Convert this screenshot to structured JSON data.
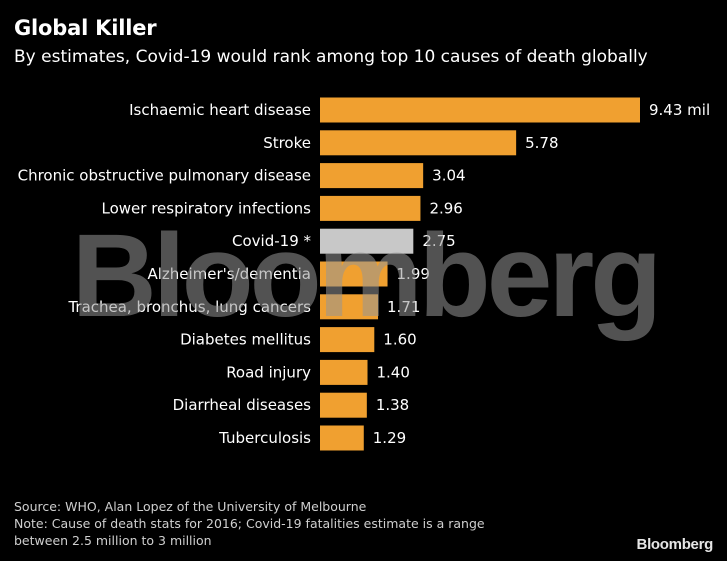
{
  "header": {
    "title": "Global Killer",
    "subtitle": "By estimates, Covid-19 would rank among top 10 causes of death globally"
  },
  "chart_data": {
    "type": "bar",
    "orientation": "horizontal",
    "title": "Global Killer",
    "subtitle": "By estimates, Covid-19 would rank among top 10 causes of death globally",
    "categories": [
      "Ischaemic heart disease",
      "Stroke",
      "Chronic obstructive pulmonary disease",
      "Lower respiratory infections",
      "Covid-19 *",
      "Alzheimer's/dementia",
      "Trachea, bronchus, lung cancers",
      "Diabetes mellitus",
      "Road injury",
      "Diarrheal diseases",
      "Tuberculosis"
    ],
    "values": [
      9.43,
      5.78,
      3.04,
      2.96,
      2.75,
      1.99,
      1.71,
      1.6,
      1.4,
      1.38,
      1.29
    ],
    "value_labels": [
      "9.43 mil",
      "5.78",
      "3.04",
      "2.96",
      "2.75",
      "1.99",
      "1.71",
      "1.60",
      "1.40",
      "1.38",
      "1.29"
    ],
    "colors": {
      "default": "#f0a030",
      "highlight": "#c8c8c8"
    },
    "highlight_category": "Covid-19 *",
    "xlim": [
      0,
      9.43
    ],
    "grid": false,
    "legend": "none"
  },
  "footer": {
    "source": "Source: WHO, Alan Lopez of the University of Melbourne",
    "note_line1": "Note: Cause of death stats for 2016; Covid-19 fatalities estimate is a range",
    "note_line2": "between 2.5 million to 3 million"
  },
  "watermark": "Bloomberg",
  "logo": "Bloomberg"
}
